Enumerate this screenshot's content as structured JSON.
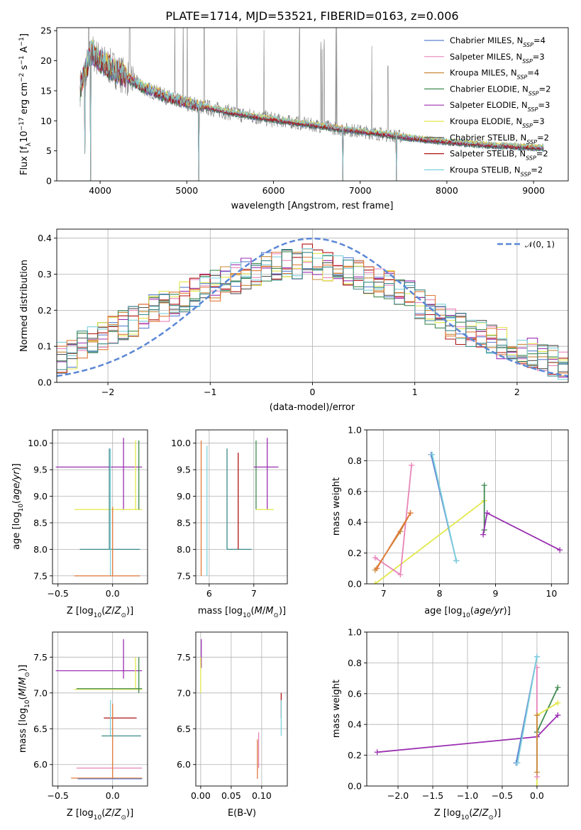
{
  "title": "PLATE=1714, MJD=53521, FIBERID=0163, z=0.006",
  "colors": {
    "chabrier_miles": "#5b7fd0",
    "salpeter_miles": "#e884b8",
    "kroupa_miles": "#c88a3a",
    "chabrier_elodie": "#3f8a50",
    "salpeter_elodie": "#9a2fb0",
    "kroupa_elodie": "#e2e84a",
    "chabrier_stelib": "#555555",
    "salpeter_stelib": "#b01010",
    "kroupa_stelib": "#7fd0dc",
    "normal_curve": "#5b87d6",
    "orange": "#e07a3a",
    "teal": "#3a8a8a"
  },
  "chart_data": [
    {
      "type": "line",
      "panel": "spectrum",
      "xlabel": "wavelength [Angstrom, rest frame]",
      "ylabel": "Flux [f_λ10^-17 erg cm^-2 s^-1 A^-1]",
      "xlim": [
        3500,
        9400
      ],
      "ylim": [
        0,
        25.5
      ],
      "xticks": [
        4000,
        5000,
        6000,
        7000,
        8000,
        9000
      ],
      "yticks": [
        0,
        5,
        10,
        15,
        20,
        25
      ],
      "legend_position": "top-right",
      "legend": [
        {
          "text": "Chabrier MILES, N_SSP=4",
          "color": "#5b7fd0"
        },
        {
          "text": "Salpeter MILES, N_SSP=3",
          "color": "#e884b8"
        },
        {
          "text": "Kroupa MILES, N_SSP=4",
          "color": "#c88a3a"
        },
        {
          "text": "Chabrier ELODIE, N_SSP=2",
          "color": "#3f8a50"
        },
        {
          "text": "Salpeter ELODIE, N_SSP=3",
          "color": "#9a2fb0"
        },
        {
          "text": "Kroupa ELODIE, N_SSP=3",
          "color": "#e2e84a"
        },
        {
          "text": "Chabrier STELIB, N_SSP=2",
          "color": "#555555"
        },
        {
          "text": "Salpeter STELIB, N_SSP=2",
          "color": "#b01010"
        },
        {
          "text": "Kroupa STELIB, N_SSP=2",
          "color": "#7fd0dc"
        }
      ],
      "model_continuum": {
        "x": [
          3770,
          3900,
          4000,
          4200,
          4500,
          4800,
          5000,
          5300,
          5600,
          6000,
          6400,
          6800,
          7200,
          7600,
          8000,
          8500,
          9100
        ],
        "y": [
          15.5,
          21.5,
          20,
          18.2,
          15.5,
          13.8,
          13,
          12,
          11.1,
          10.2,
          9.4,
          8.6,
          7.9,
          7.1,
          6.5,
          5.9,
          5.5
        ]
      },
      "emission_lines": [
        3727,
        3869,
        4340,
        4861,
        4959,
        5007,
        5200,
        5577,
        5890,
        6300,
        6548,
        6563,
        6584,
        6717,
        6731,
        7135,
        7320
      ],
      "model_drops": [
        {
          "x": 3825,
          "y": 4.5
        },
        {
          "x": 3890,
          "y": 0
        },
        {
          "x": 5140,
          "y": 0
        },
        {
          "x": 6800,
          "y": 0
        },
        {
          "x": 7420,
          "y": 0
        }
      ]
    },
    {
      "type": "line",
      "panel": "residuals",
      "xlabel": "(data-model)/error",
      "ylabel": "Normed distribution",
      "xlim": [
        -2.5,
        2.5
      ],
      "ylim": [
        0,
        0.425
      ],
      "xticks": [
        -2,
        -1,
        0,
        1,
        2
      ],
      "yticks": [
        0.0,
        0.1,
        0.2,
        0.3,
        0.4
      ],
      "legend": [
        {
          "text": "𝒩(0, 1)",
          "color": "#5b87d6"
        }
      ],
      "legend_position": "top-right",
      "bin_width": 0.1,
      "step_base": [
        0.07,
        0.08,
        0.1,
        0.11,
        0.13,
        0.14,
        0.16,
        0.17,
        0.19,
        0.2,
        0.21,
        0.22,
        0.24,
        0.25,
        0.26,
        0.27,
        0.28,
        0.29,
        0.3,
        0.31,
        0.32,
        0.32,
        0.33,
        0.33,
        0.34,
        0.33,
        0.32,
        0.32,
        0.31,
        0.3,
        0.29,
        0.28,
        0.27,
        0.25,
        0.24,
        0.22,
        0.2,
        0.18,
        0.16,
        0.15,
        0.14,
        0.13,
        0.12,
        0.11,
        0.1,
        0.09,
        0.08,
        0.07,
        0.06,
        0.05
      ]
    },
    {
      "type": "scatter",
      "panel": "age-vs-Z",
      "xlabel": "Z [log10(Z/Z☉)]",
      "ylabel": "age [log10(age/yr)]",
      "xlim": [
        -0.55,
        0.32
      ],
      "ylim": [
        7.35,
        10.25
      ],
      "xticks": [
        -0.5,
        0.0
      ],
      "yticks": [
        7.5,
        8.0,
        8.5,
        9.0,
        9.5,
        10.0
      ],
      "segments": [
        {
          "color": "#9a2fb0",
          "h": [
            -0.52,
            0.27,
            9.55
          ],
          "v": [
            0.1,
            8.75,
            10.1
          ]
        },
        {
          "color": "#e2e84a",
          "h": [
            -0.35,
            0.27,
            8.75
          ],
          "v": [
            0.21,
            8.75,
            10.05
          ]
        },
        {
          "color": "#3f8a50",
          "v": [
            0.24,
            8.75,
            10.05
          ]
        },
        {
          "color": "#3a8a8a",
          "h": [
            -0.3,
            0.25,
            8.0
          ],
          "v": [
            -0.03,
            8.0,
            9.9
          ]
        },
        {
          "color": "#7fd0dc",
          "v": [
            -0.02,
            7.5,
            9.9
          ]
        },
        {
          "color": "#e07a3a",
          "h": [
            -0.35,
            0.25,
            7.5
          ],
          "v": [
            0.0,
            7.5,
            8.8
          ]
        }
      ]
    },
    {
      "type": "scatter",
      "panel": "age-vs-mass",
      "xlabel": "mass [log10(M/M☉)]",
      "xlim": [
        5.7,
        7.75
      ],
      "ylim": [
        7.35,
        10.25
      ],
      "xticks": [
        6,
        7
      ],
      "yticks": [
        7.5,
        8.0,
        8.5,
        9.0,
        9.5,
        10.0
      ],
      "segments": [
        {
          "color": "#e07a3a",
          "v": [
            5.82,
            7.5,
            10.05
          ]
        },
        {
          "color": "#7fd0dc",
          "v": [
            5.95,
            7.5,
            9.95
          ]
        },
        {
          "color": "#3a8a8a",
          "v": [
            6.4,
            8.0,
            9.9
          ],
          "h": [
            6.4,
            6.95,
            8.0
          ]
        },
        {
          "color": "#b01010",
          "v": [
            6.65,
            8.0,
            9.82
          ]
        },
        {
          "color": "#3f8a50",
          "v": [
            7.05,
            8.75,
            10.05
          ]
        },
        {
          "color": "#9a2fb0",
          "v": [
            7.3,
            8.75,
            10.1
          ],
          "h": [
            7.0,
            7.55,
            9.55
          ]
        },
        {
          "color": "#e2e84a",
          "h": [
            7.05,
            7.45,
            8.75
          ]
        }
      ]
    },
    {
      "type": "line",
      "panel": "mass-weight-vs-age",
      "xlabel": "age [log10(age/yr)]",
      "ylabel": "mass weight",
      "xlim": [
        6.7,
        10.3
      ],
      "ylim": [
        0,
        1.0
      ],
      "xticks": [
        7,
        8,
        9,
        10
      ],
      "yticks": [
        0.0,
        0.2,
        0.4,
        0.6,
        0.8,
        1.0
      ],
      "series": [
        {
          "color": "#e2e84a",
          "x": [
            6.85,
            8.8
          ],
          "y": [
            0.0,
            0.54
          ]
        },
        {
          "color": "#e884b8",
          "x": [
            6.85,
            7.3,
            7.5
          ],
          "y": [
            0.17,
            0.06,
            0.77
          ]
        },
        {
          "color": "#c88a3a",
          "x": [
            6.85,
            7.3,
            7.48
          ],
          "y": [
            0.09,
            0.34,
            0.46
          ]
        },
        {
          "color": "#e07a3a",
          "x": [
            6.88,
            7.48
          ],
          "y": [
            0.1,
            0.46
          ]
        },
        {
          "color": "#5b7fd0",
          "x": [
            7.85,
            8.3
          ],
          "y": [
            0.84,
            0.15
          ]
        },
        {
          "color": "#7fd0dc",
          "x": [
            7.87,
            8.3
          ],
          "y": [
            0.84,
            0.15
          ]
        },
        {
          "color": "#3f8a50",
          "x": [
            8.8,
            8.8
          ],
          "y": [
            0.64,
            0.35
          ]
        },
        {
          "color": "#9a2fb0",
          "x": [
            8.78,
            8.85,
            10.15
          ],
          "y": [
            0.32,
            0.46,
            0.22
          ]
        }
      ]
    },
    {
      "type": "scatter",
      "panel": "mass-vs-Z",
      "xlabel": "Z [log10(Z/Z☉)]",
      "ylabel": "mass [log10(M/M☉)]",
      "xlim": [
        -0.55,
        0.32
      ],
      "ylim": [
        5.7,
        7.85
      ],
      "xticks": [
        -0.5,
        0.0
      ],
      "yticks": [
        6.0,
        6.5,
        7.0,
        7.5
      ],
      "segments": [
        {
          "color": "#9a2fb0",
          "h": [
            -0.52,
            0.27,
            7.31
          ],
          "v": [
            0.1,
            7.2,
            7.75
          ]
        },
        {
          "color": "#e2e84a",
          "h": [
            -0.35,
            0.27,
            7.05
          ],
          "v": [
            0.21,
            7.05,
            7.5
          ]
        },
        {
          "color": "#3f8a50",
          "h": [
            -0.33,
            0.27,
            7.06
          ],
          "v": [
            0.24,
            7.0,
            7.5
          ]
        },
        {
          "color": "#b01010",
          "h": [
            -0.08,
            0.22,
            6.65
          ]
        },
        {
          "color": "#3a8a8a",
          "h": [
            -0.1,
            0.26,
            6.4
          ]
        },
        {
          "color": "#7fd0dc",
          "v": [
            -0.02,
            6.4,
            6.9
          ]
        },
        {
          "color": "#e884b8",
          "h": [
            -0.33,
            0.27,
            5.95
          ]
        },
        {
          "color": "#e07a3a",
          "h": [
            -0.38,
            0.27,
            5.81
          ],
          "v": [
            0.0,
            5.81,
            6.85
          ]
        },
        {
          "color": "#5b7fd0",
          "h": [
            -0.32,
            0.27,
            5.8
          ]
        }
      ]
    },
    {
      "type": "scatter",
      "panel": "mass-vs-EBV",
      "xlabel": "E(B-V)",
      "xlim": [
        -0.008,
        0.142
      ],
      "ylim": [
        5.7,
        7.85
      ],
      "xticks": [
        0.0,
        0.05,
        0.1
      ],
      "yticks": [
        6.0,
        6.5,
        7.0,
        7.5
      ],
      "segments": [
        {
          "color": "#9a2fb0",
          "v": [
            0.001,
            7.35,
            7.75
          ]
        },
        {
          "color": "#e2e84a",
          "v": [
            0.0,
            7.0,
            7.5
          ]
        },
        {
          "color": "#e884b8",
          "v": [
            0.095,
            5.95,
            6.45
          ]
        },
        {
          "color": "#e07a3a",
          "v": [
            0.093,
            5.8,
            6.35
          ]
        },
        {
          "color": "#b01010",
          "v": [
            0.132,
            6.65,
            7.0
          ]
        },
        {
          "color": "#7fd0dc",
          "v": [
            0.132,
            6.4,
            6.9
          ]
        }
      ]
    },
    {
      "type": "line",
      "panel": "mass-weight-vs-Z",
      "xlabel": "Z [log10(Z/Z☉)]",
      "ylabel": "mass weight",
      "xlim": [
        -2.45,
        0.45
      ],
      "ylim": [
        0,
        1.0
      ],
      "xticks": [
        -2.0,
        -1.5,
        -1.0,
        -0.5,
        0.0
      ],
      "yticks": [
        0.0,
        0.2,
        0.4,
        0.6,
        0.8,
        1.0
      ],
      "series": [
        {
          "color": "#9a2fb0",
          "x": [
            -2.3,
            0.0,
            0.3
          ],
          "y": [
            0.22,
            0.32,
            0.46
          ]
        },
        {
          "color": "#3f8a50",
          "x": [
            0.0,
            0.3
          ],
          "y": [
            0.35,
            0.64
          ]
        },
        {
          "color": "#e2e84a",
          "x": [
            0.0,
            0.0,
            0.3
          ],
          "y": [
            0.0,
            0.46,
            0.54
          ]
        },
        {
          "color": "#e884b8",
          "x": [
            0.0,
            0.0
          ],
          "y": [
            0.06,
            0.77
          ]
        },
        {
          "color": "#c88a3a",
          "x": [
            0.0,
            0.0
          ],
          "y": [
            0.09,
            0.46
          ]
        },
        {
          "color": "#5b7fd0",
          "x": [
            -0.3,
            0.0
          ],
          "y": [
            0.15,
            0.84
          ]
        },
        {
          "color": "#7fd0dc",
          "x": [
            -0.28,
            0.0
          ],
          "y": [
            0.15,
            0.84
          ]
        }
      ]
    }
  ]
}
